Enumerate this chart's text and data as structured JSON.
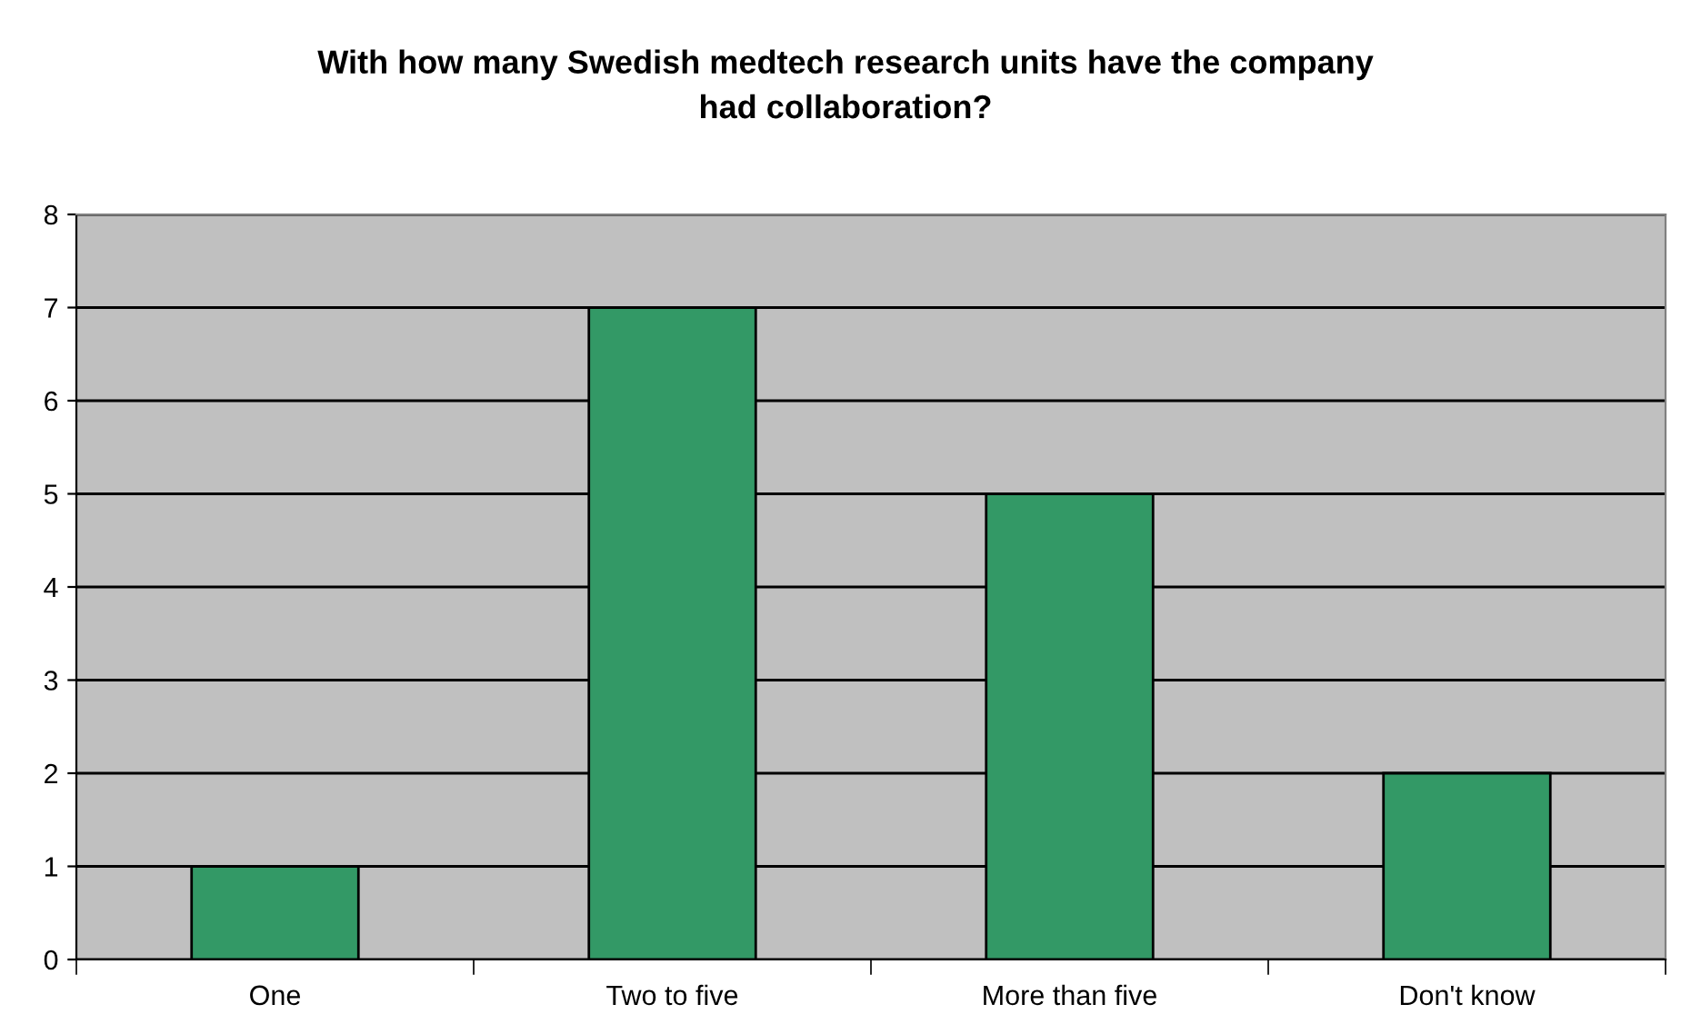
{
  "chart_data": {
    "type": "bar",
    "title": "With how many Swedish medtech research units have the company\nhad collaboration?",
    "categories": [
      "One",
      "Two to five",
      "More than five",
      "Don't know"
    ],
    "values": [
      1,
      7,
      5,
      2
    ],
    "color": "#339966",
    "ylim": [
      0,
      8
    ],
    "yticks": [
      0,
      1,
      2,
      3,
      4,
      5,
      6,
      7,
      8
    ],
    "grid": "y",
    "legend": false
  }
}
